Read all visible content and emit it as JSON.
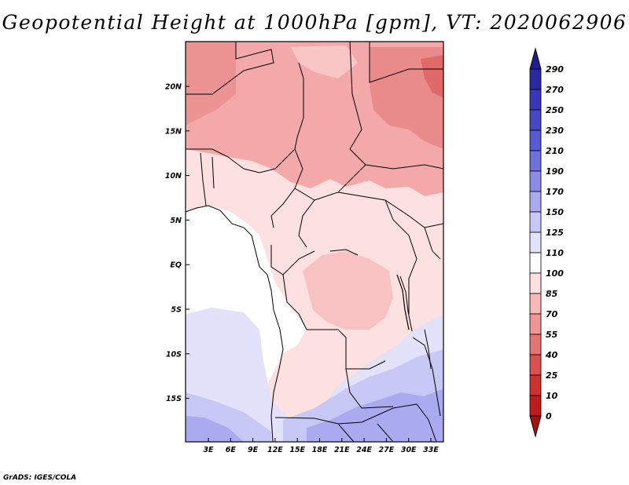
{
  "title": "Geopotential Height at 1000hPa [gpm], VT: 2020062906",
  "credit": "GrADS: IGES/COLA",
  "map": {
    "lat_labels": [
      "20N",
      "15N",
      "10N",
      "5N",
      "EQ",
      "5S",
      "10S",
      "15S"
    ],
    "lon_labels": [
      "3E",
      "6E",
      "9E",
      "12E",
      "15E",
      "18E",
      "21E",
      "24E",
      "27E",
      "30E",
      "33E"
    ]
  },
  "colorbar": {
    "levels": [
      "290",
      "270",
      "250",
      "230",
      "210",
      "190",
      "170",
      "150",
      "125",
      "110",
      "100",
      "85",
      "70",
      "55",
      "40",
      "25",
      "10",
      "0"
    ],
    "colors": [
      "#1e1e8c",
      "#2a2aa0",
      "#3838b4",
      "#4848c4",
      "#5a5ad2",
      "#7070dc",
      "#8c8ce6",
      "#aaaaf0",
      "#c8c8f6",
      "#e2e2fb",
      "#ffffff",
      "#fde0e0",
      "#f7b8b8",
      "#ef9595",
      "#e67373",
      "#dc5050",
      "#cf3030",
      "#bd1c1c",
      "#a51212"
    ]
  }
}
